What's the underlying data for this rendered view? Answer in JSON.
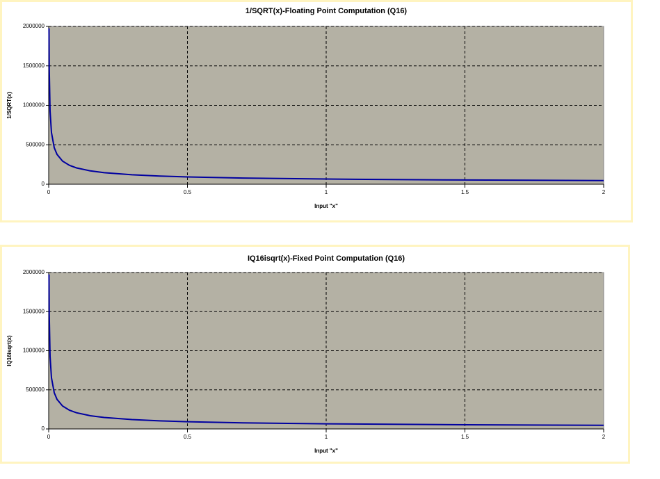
{
  "chart_data": [
    {
      "type": "line",
      "title": "1/SQRT(x)-Floating Point Computation (Q16)",
      "x_label": "Input \"x\"",
      "y_label": "1/SQRT(x)",
      "x": [
        0.0011,
        0.002,
        0.005,
        0.01,
        0.02,
        0.03,
        0.05,
        0.075,
        0.1,
        0.15,
        0.2,
        0.3,
        0.4,
        0.5,
        0.7,
        1,
        1.5,
        2
      ],
      "series": [
        {
          "color": "#0000a0",
          "values": [
            1976000,
            1465000,
            926800,
            655360,
            463400,
            378400,
            293100,
            239300,
            207200,
            169200,
            146500,
            119700,
            103600,
            92680,
            78330,
            65536,
            53510,
            46340
          ]
        }
      ],
      "xlim": [
        0,
        2
      ],
      "xticks": [
        0,
        0.5,
        1,
        1.5,
        2
      ],
      "ylim": [
        0,
        2000000
      ],
      "yticks": [
        0,
        500000,
        1000000,
        1500000,
        2000000
      ],
      "grid": true
    },
    {
      "type": "line",
      "title": "IQ16isqrt(x)-Fixed Point Computation (Q16)",
      "x_label": "Input \"x\"",
      "y_label": "IQ16isqrt(x)",
      "x": [
        0.0011,
        0.002,
        0.005,
        0.01,
        0.02,
        0.03,
        0.05,
        0.075,
        0.1,
        0.15,
        0.2,
        0.3,
        0.4,
        0.5,
        0.7,
        1,
        1.5,
        2
      ],
      "series": [
        {
          "color": "#0000a0",
          "values": [
            1976000,
            1465000,
            926800,
            655360,
            463400,
            378400,
            293100,
            239300,
            207200,
            169200,
            146500,
            119700,
            103600,
            92680,
            78330,
            65536,
            53510,
            46340
          ]
        }
      ],
      "xlim": [
        0,
        2
      ],
      "xticks": [
        0,
        0.5,
        1,
        1.5,
        2
      ],
      "ylim": [
        0,
        2000000
      ],
      "yticks": [
        0,
        500000,
        1000000,
        1500000,
        2000000
      ],
      "grid": true
    }
  ]
}
